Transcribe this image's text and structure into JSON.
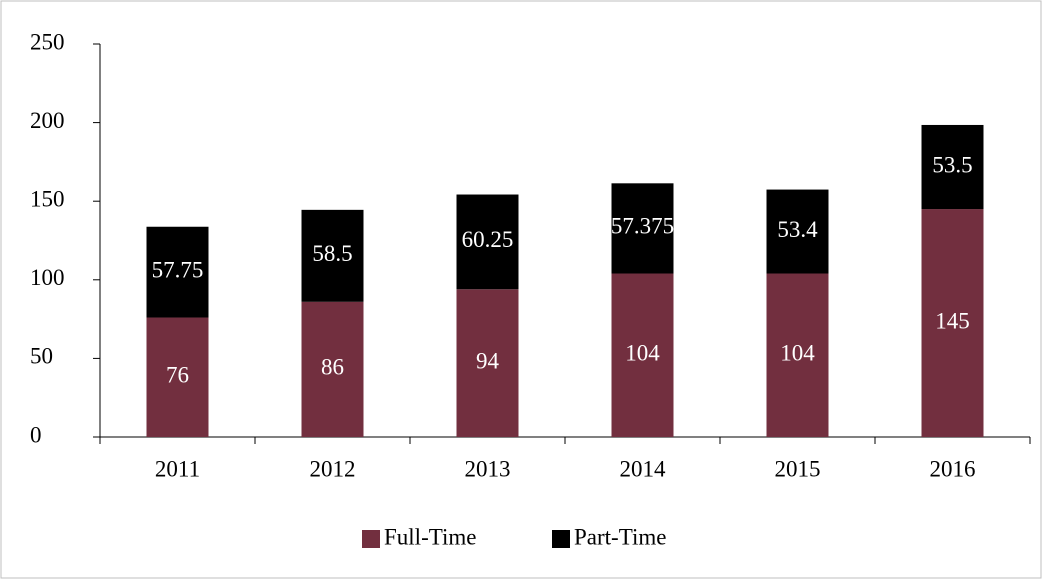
{
  "chart_data": {
    "type": "stacked_bar",
    "categories": [
      "2011",
      "2012",
      "2013",
      "2014",
      "2015",
      "2016"
    ],
    "series": [
      {
        "name": "Full-Time",
        "color": "#722f3f",
        "values": [
          76,
          86,
          94,
          104,
          104,
          145
        ]
      },
      {
        "name": "Part-Time",
        "color": "#000000",
        "values": [
          57.75,
          58.5,
          60.25,
          57.375,
          53.4,
          53.5
        ]
      }
    ],
    "ylim": [
      0,
      250
    ],
    "yticks": [
      0,
      50,
      100,
      150,
      200,
      250
    ],
    "grid": false,
    "legend": "bottom"
  }
}
